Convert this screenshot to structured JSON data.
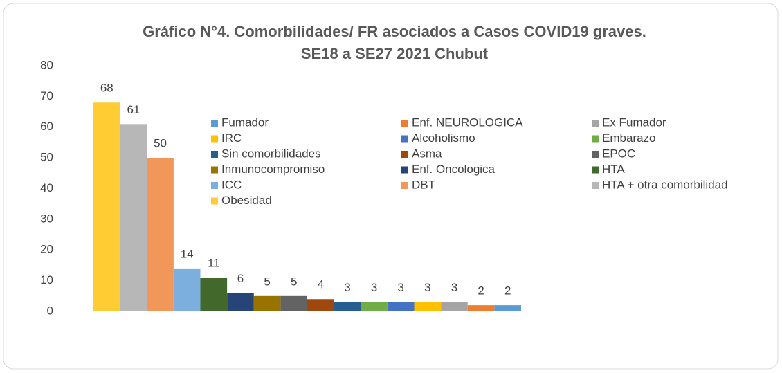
{
  "chart_data": {
    "type": "bar",
    "title": "Gráfico N°4. Comorbilidades/ FR asociados a Casos COVID19 graves.",
    "subtitle": "SE18 a SE27  2021 Chubut",
    "ylim": [
      0,
      80
    ],
    "yticks": [
      0,
      10,
      20,
      30,
      40,
      50,
      60,
      70,
      80
    ],
    "grid": false,
    "series": [
      {
        "name": "Fumador",
        "color": "#5b9bd5",
        "values": [
          2
        ]
      },
      {
        "name": "Enf. NEUROLOGICA",
        "color": "#ed7d31",
        "values": [
          2
        ]
      },
      {
        "name": "Ex Fumador",
        "color": "#a5a5a5",
        "values": [
          3
        ]
      },
      {
        "name": "IRC",
        "color": "#ffc000",
        "values": [
          3
        ]
      },
      {
        "name": "Alcoholismo",
        "color": "#4472c4",
        "values": [
          3
        ]
      },
      {
        "name": "Embarazo",
        "color": "#70ad47",
        "values": [
          3
        ]
      },
      {
        "name": "Sin comorbilidades",
        "color": "#255e91",
        "values": [
          3
        ]
      },
      {
        "name": "Asma",
        "color": "#9e480e",
        "values": [
          4
        ]
      },
      {
        "name": "EPOC",
        "color": "#636363",
        "values": [
          5
        ]
      },
      {
        "name": "Inmunocompromiso",
        "color": "#997300",
        "values": [
          5
        ]
      },
      {
        "name": "Enf. Oncologica",
        "color": "#264478",
        "values": [
          6
        ]
      },
      {
        "name": "HTA",
        "color": "#43682b",
        "values": [
          11
        ]
      },
      {
        "name": "ICC",
        "color": "#7cafdd",
        "values": [
          14
        ]
      },
      {
        "name": "DBT",
        "color": "#f1975a",
        "values": [
          50
        ]
      },
      {
        "name": "HTA + otra comorbilidad",
        "color": "#b7b7b7",
        "values": [
          61
        ]
      },
      {
        "name": "Obesidad",
        "color": "#ffcd33",
        "values": [
          68
        ]
      }
    ]
  }
}
